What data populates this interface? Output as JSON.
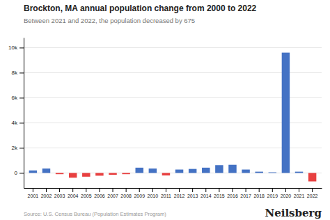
{
  "chart_data": {
    "type": "bar",
    "title": "Brockton, MA annual population change from 2000 to 2022",
    "subtitle": "Between 2021 and 2022, the population decreased by 675",
    "source": "Source: U.S. Census Bureau (Population Estimates Program)",
    "branding": "Neilsberg",
    "categories": [
      2001,
      2002,
      2003,
      2004,
      2005,
      2006,
      2007,
      2008,
      2009,
      2010,
      2011,
      2012,
      2013,
      2014,
      2015,
      2016,
      2017,
      2018,
      2019,
      2020,
      2021,
      2022
    ],
    "values": [
      200,
      350,
      -100,
      -380,
      -300,
      -220,
      -150,
      -100,
      420,
      350,
      -200,
      270,
      320,
      420,
      620,
      650,
      270,
      100,
      50,
      9600,
      100,
      -675
    ],
    "colors": [
      "#4472C4",
      "#4472C4",
      "#E84040",
      "#E84040",
      "#E84040",
      "#E84040",
      "#E84040",
      "#E84040",
      "#4472C4",
      "#4472C4",
      "#E84040",
      "#4472C4",
      "#4472C4",
      "#4472C4",
      "#4472C4",
      "#4472C4",
      "#4472C4",
      "#4472C4",
      "#4472C4",
      "#4472C4",
      "#4472C4",
      "#E84040"
    ],
    "ylim": [
      -1200,
      10800
    ],
    "yticks": [
      0,
      {
        "value": 2000,
        "label": "2k"
      },
      {
        "value": 4000,
        "label": "4k"
      },
      {
        "value": 6000,
        "label": "6k"
      },
      {
        "value": 8000,
        "label": "8k"
      },
      {
        "value": 10000,
        "label": "10k"
      }
    ],
    "grid": true
  }
}
